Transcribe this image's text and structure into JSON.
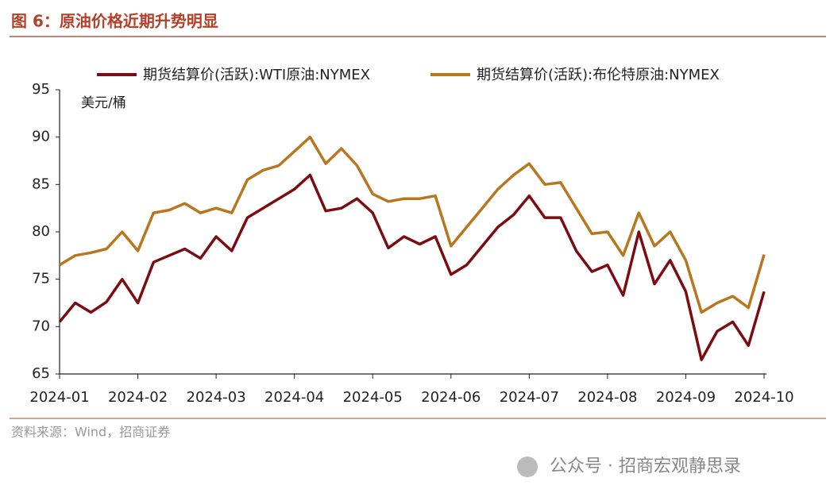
{
  "header": {
    "title": "图 6：原油价格近期升势明显"
  },
  "chart_data": {
    "type": "line",
    "y_label": "美元/桶",
    "categories": [
      "2024-01",
      null,
      null,
      null,
      null,
      "2024-02",
      null,
      null,
      null,
      null,
      "2024-03",
      null,
      null,
      null,
      null,
      "2024-04",
      null,
      null,
      null,
      null,
      "2024-05",
      null,
      null,
      null,
      null,
      "2024-06",
      null,
      null,
      null,
      null,
      "2024-07",
      null,
      null,
      null,
      null,
      "2024-08",
      null,
      null,
      null,
      null,
      "2024-09",
      null,
      null,
      null,
      null,
      "2024-10"
    ],
    "series": [
      {
        "name": "期货结算价(活跃):WTI原油:NYMEX",
        "color": "#7b0c12",
        "values": [
          70.5,
          72.5,
          71.5,
          72.6,
          75,
          72.5,
          76.8,
          77.5,
          78.2,
          77.2,
          79.5,
          78,
          81.5,
          82.5,
          83.5,
          84.5,
          86,
          82.2,
          82.5,
          83.5,
          82,
          78.3,
          79.5,
          78.7,
          79.5,
          75.5,
          76.5,
          78.5,
          80.5,
          81.8,
          83.8,
          81.5,
          81.5,
          78,
          75.8,
          76.5,
          73.3,
          80,
          74.5,
          77,
          73.7,
          66.5,
          69.5,
          70.5,
          68,
          73.7
        ]
      },
      {
        "name": "期货结算价(活跃):布伦特原油:NYMEX",
        "color": "#b8761f",
        "values": [
          76.5,
          77.5,
          77.8,
          78.2,
          80,
          78,
          82,
          82.3,
          83,
          82,
          82.5,
          82,
          85.5,
          86.5,
          87,
          88.5,
          90,
          87.2,
          88.8,
          87,
          84,
          83.2,
          83.5,
          83.5,
          83.8,
          78.5,
          80.5,
          82.5,
          84.5,
          86,
          87.2,
          85,
          85.2,
          82.5,
          79.8,
          80,
          77.5,
          82,
          78.5,
          80,
          77,
          71.5,
          72.5,
          73.2,
          72,
          77.6
        ]
      }
    ],
    "ylim": [
      65,
      95
    ],
    "yticks": [
      65,
      70,
      75,
      80,
      85,
      90,
      95
    ],
    "grid": false
  },
  "source": "资料来源：Wind，招商证券",
  "watermark": "公众号 · 招商宏观静思录"
}
